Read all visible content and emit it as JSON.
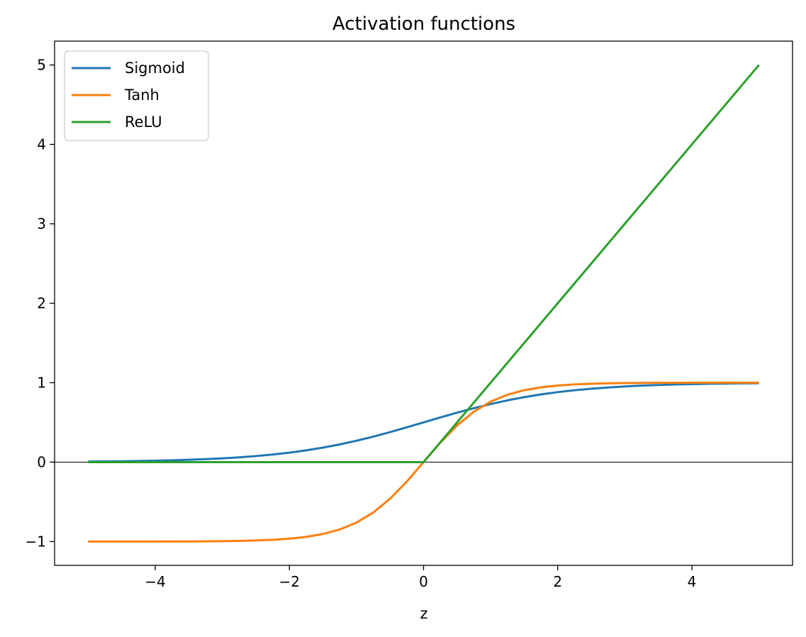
{
  "chart_data": {
    "type": "line",
    "title": "Activation functions",
    "xlabel": "z",
    "ylabel": "",
    "xlim": [
      -5.5,
      5.5
    ],
    "ylim": [
      -1.3,
      5.3
    ],
    "xticks": [
      -4,
      -2,
      0,
      2,
      4
    ],
    "xtick_labels": [
      "−4",
      "−2",
      "0",
      "2",
      "4"
    ],
    "yticks": [
      -1,
      0,
      1,
      2,
      3,
      4,
      5
    ],
    "ytick_labels": [
      "−1",
      "0",
      "1",
      "2",
      "3",
      "4",
      "5"
    ],
    "grid": false,
    "hline_at_zero": true,
    "legend_placement": "top-left",
    "x": [
      -5,
      -4.75,
      -4.5,
      -4.25,
      -4,
      -3.75,
      -3.5,
      -3.25,
      -3,
      -2.75,
      -2.5,
      -2.25,
      -2,
      -1.75,
      -1.5,
      -1.25,
      -1,
      -0.75,
      -0.5,
      -0.25,
      0,
      0.25,
      0.5,
      0.75,
      1,
      1.25,
      1.5,
      1.75,
      2,
      2.25,
      2.5,
      2.75,
      3,
      3.25,
      3.5,
      3.75,
      4,
      4.25,
      4.5,
      4.75,
      5
    ],
    "series": [
      {
        "name": "Sigmoid",
        "color": "#1f77b4",
        "values": [
          0.0067,
          0.0086,
          0.011,
          0.014,
          0.018,
          0.023,
          0.0293,
          0.0373,
          0.0474,
          0.0601,
          0.0759,
          0.0953,
          0.1192,
          0.148,
          0.1824,
          0.2227,
          0.2689,
          0.3208,
          0.3775,
          0.4378,
          0.5,
          0.5622,
          0.6225,
          0.6792,
          0.7311,
          0.7773,
          0.8176,
          0.852,
          0.8808,
          0.9047,
          0.9241,
          0.9399,
          0.9526,
          0.9627,
          0.9707,
          0.977,
          0.982,
          0.986,
          0.989,
          0.9914,
          0.9933
        ]
      },
      {
        "name": "Tanh",
        "color": "#ff7f0e",
        "values": [
          -0.9999,
          -0.9999,
          -0.9998,
          -0.9996,
          -0.9993,
          -0.9989,
          -0.9982,
          -0.997,
          -0.9951,
          -0.9918,
          -0.9866,
          -0.978,
          -0.964,
          -0.9414,
          -0.9051,
          -0.8483,
          -0.7616,
          -0.6351,
          -0.4621,
          -0.2449,
          0,
          0.2449,
          0.4621,
          0.6351,
          0.7616,
          0.8483,
          0.9051,
          0.9414,
          0.964,
          0.978,
          0.9866,
          0.9918,
          0.9951,
          0.997,
          0.9982,
          0.9989,
          0.9993,
          0.9996,
          0.9998,
          0.9999,
          0.9999
        ]
      },
      {
        "name": "ReLU",
        "color": "#2ca02c",
        "values": [
          0,
          0,
          0,
          0,
          0,
          0,
          0,
          0,
          0,
          0,
          0,
          0,
          0,
          0,
          0,
          0,
          0,
          0,
          0,
          0,
          0,
          0.25,
          0.5,
          0.75,
          1,
          1.25,
          1.5,
          1.75,
          2,
          2.25,
          2.5,
          2.75,
          3,
          3.25,
          3.5,
          3.75,
          4,
          4.25,
          4.5,
          4.75,
          5
        ]
      }
    ]
  }
}
